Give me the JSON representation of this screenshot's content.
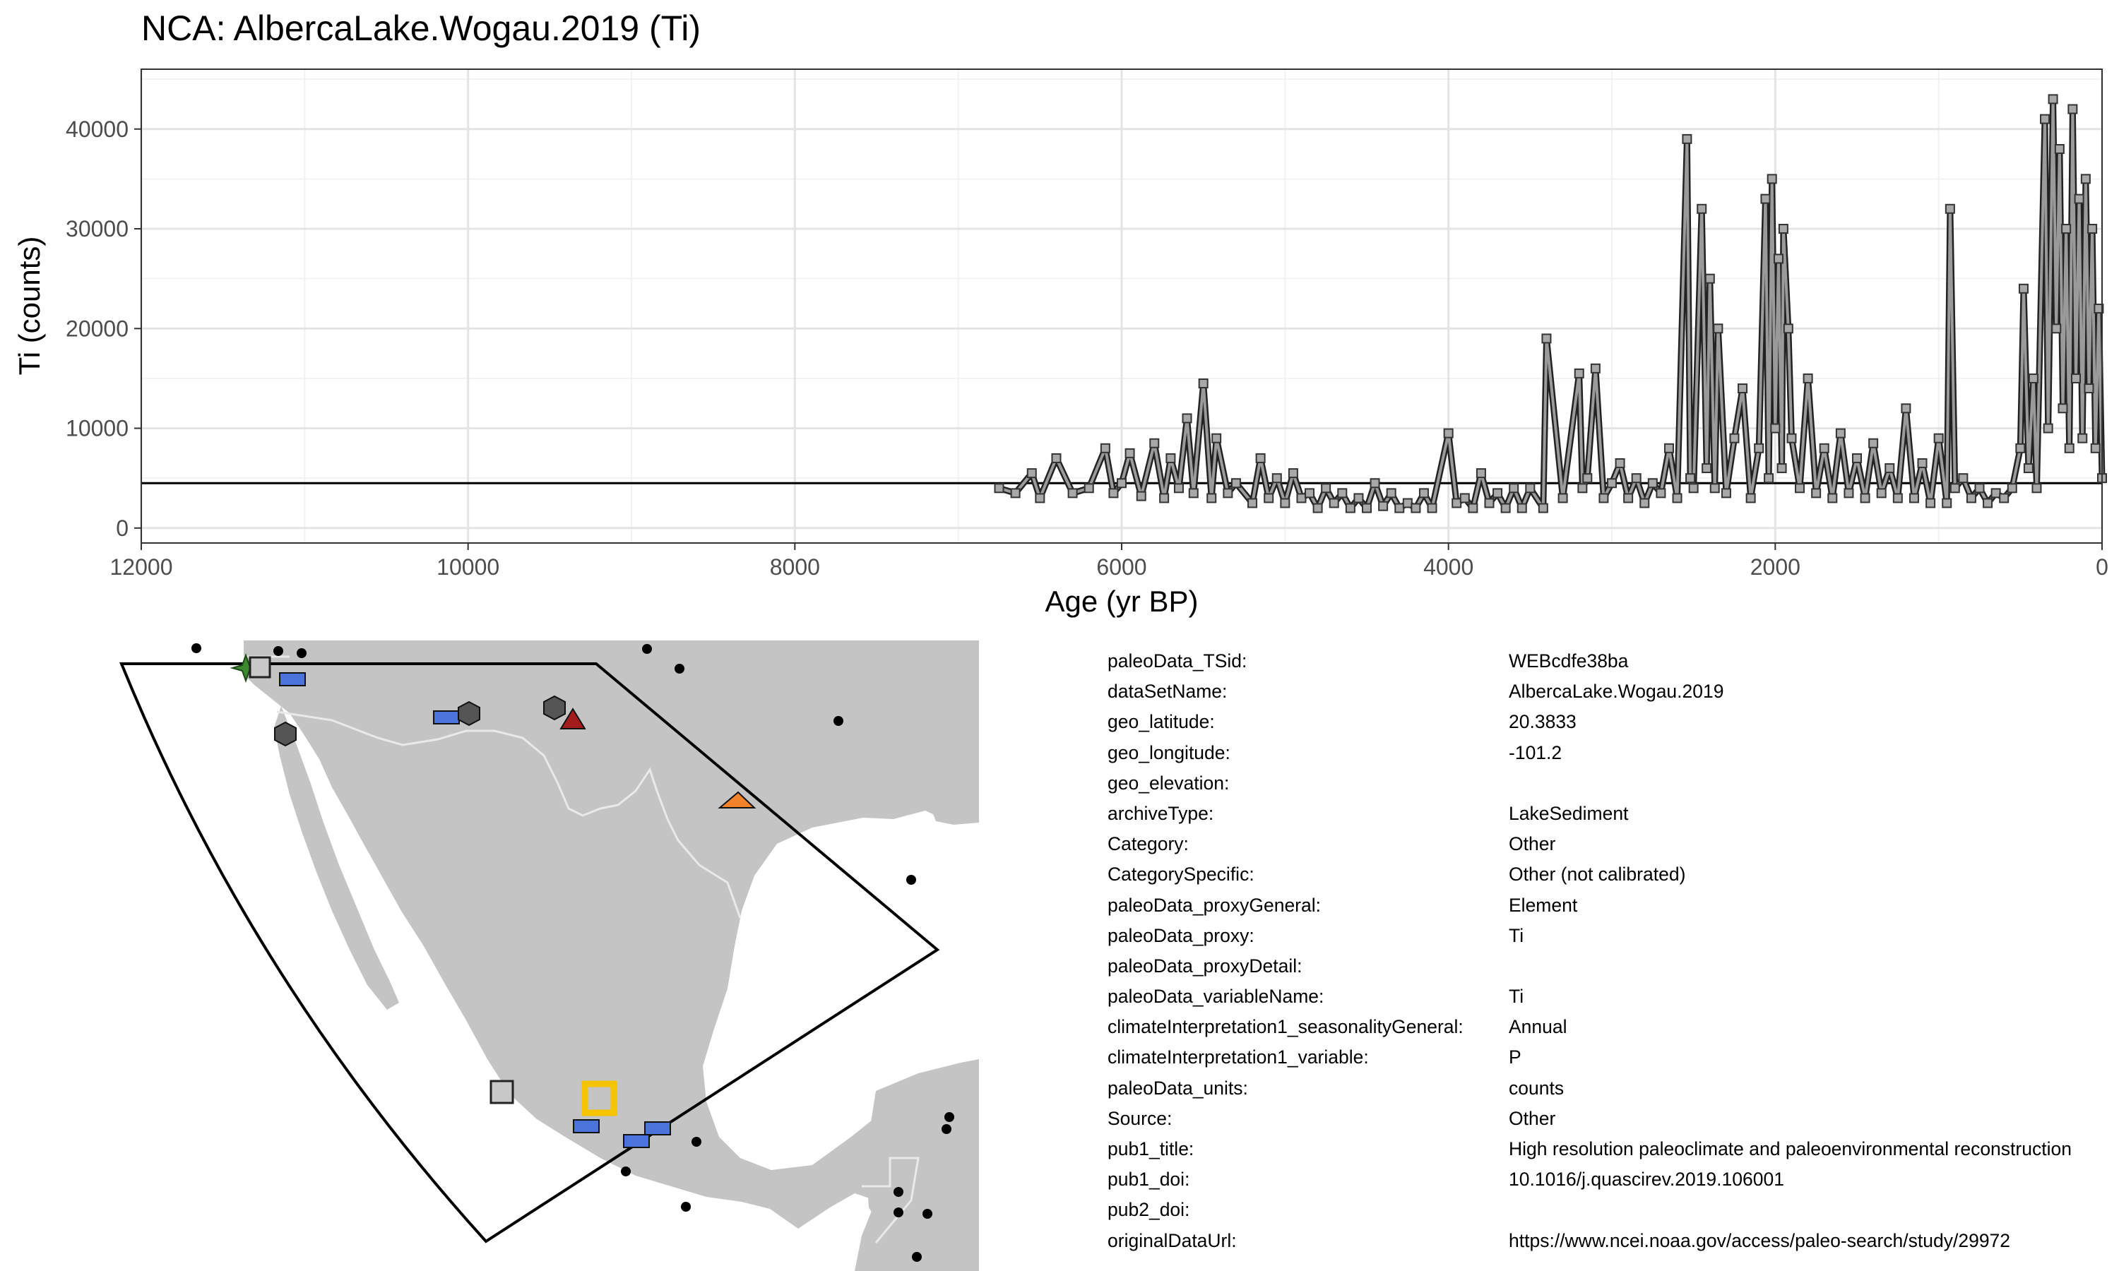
{
  "chart_data": {
    "type": "line",
    "title": "NCA: AlbercaLake.Wogau.2019 (Ti)",
    "xlabel": "Age (yr BP)",
    "ylabel": "Ti (counts)",
    "xlim": [
      12000,
      0
    ],
    "ylim": [
      -1500,
      46000
    ],
    "x_reversed": true,
    "grid": true,
    "x_ticks": [
      12000,
      10000,
      8000,
      6000,
      4000,
      2000,
      0
    ],
    "y_ticks": [
      0,
      10000,
      20000,
      30000,
      40000
    ],
    "mean_line": 4500,
    "series": [
      {
        "x": [
          6750,
          6650,
          6550,
          6500,
          6400,
          6300,
          6200,
          6100,
          6050,
          6000,
          5950,
          5880,
          5800,
          5740,
          5700,
          5650,
          5600,
          5560,
          5500,
          5450,
          5420,
          5350,
          5300,
          5200,
          5150,
          5100,
          5050,
          5000,
          4950,
          4900,
          4850,
          4800,
          4750,
          4700,
          4650,
          4600,
          4550,
          4500,
          4450,
          4400,
          4350,
          4300,
          4250,
          4200,
          4150,
          4100,
          4000,
          3950,
          3900,
          3850,
          3800,
          3750,
          3700,
          3650,
          3600,
          3550,
          3500,
          3420,
          3400,
          3300,
          3200,
          3180,
          3150,
          3100,
          3050,
          3000,
          2950,
          2900,
          2850,
          2800,
          2750,
          2700,
          2650,
          2600,
          2540,
          2520,
          2500,
          2450,
          2420,
          2400,
          2370,
          2350,
          2300,
          2250,
          2200,
          2150,
          2100,
          2060,
          2040,
          2020,
          2000,
          1980,
          1960,
          1950,
          1920,
          1900,
          1850,
          1800,
          1750,
          1700,
          1650,
          1600,
          1550,
          1500,
          1450,
          1400,
          1350,
          1300,
          1250,
          1200,
          1150,
          1100,
          1050,
          1000,
          950,
          930,
          900,
          850,
          800,
          750,
          700,
          650,
          600,
          550,
          500,
          480,
          450,
          420,
          400,
          350,
          330,
          300,
          280,
          260,
          240,
          220,
          200,
          180,
          160,
          140,
          120,
          100,
          80,
          60,
          40,
          20,
          0
        ],
        "y": [
          4000,
          3500,
          5500,
          3000,
          7000,
          3500,
          4000,
          8000,
          3500,
          4500,
          7500,
          3200,
          8500,
          3000,
          7000,
          4000,
          11000,
          3500,
          14500,
          3000,
          9000,
          3500,
          4500,
          2500,
          7000,
          3000,
          5000,
          2500,
          5500,
          3000,
          3500,
          2000,
          4000,
          2500,
          3500,
          2000,
          3000,
          2000,
          4500,
          2200,
          3500,
          2000,
          2500,
          2000,
          3500,
          2000,
          9500,
          2500,
          3000,
          2000,
          5500,
          2500,
          3500,
          2000,
          4000,
          2000,
          4000,
          2000,
          19000,
          3000,
          15500,
          4000,
          5000,
          16000,
          3000,
          4500,
          6500,
          3000,
          5000,
          2500,
          4500,
          3500,
          8000,
          3000,
          39000,
          5000,
          4000,
          32000,
          6000,
          25000,
          4000,
          20000,
          3500,
          9000,
          14000,
          3000,
          8000,
          33000,
          5000,
          35000,
          10000,
          27000,
          6000,
          30000,
          20000,
          9000,
          4000,
          15000,
          3500,
          8000,
          3000,
          9500,
          3500,
          7000,
          3000,
          8500,
          3500,
          6000,
          3000,
          12000,
          3000,
          6500,
          2500,
          9000,
          2500,
          32000,
          4000,
          5000,
          3000,
          4000,
          2500,
          3500,
          3000,
          4000,
          8000,
          24000,
          6000,
          15000,
          4000,
          41000,
          10000,
          43000,
          20000,
          38000,
          12000,
          30000,
          8000,
          42000,
          15000,
          33000,
          9000,
          35000,
          14000,
          30000,
          8000,
          22000,
          5000
        ]
      }
    ]
  },
  "map": {
    "colors": {
      "land": "#c4c4c4",
      "border": "#e8e8e8",
      "marker_blue": "#4a74d9",
      "marker_dark": "#555555",
      "marker_red": "#a31c1c",
      "marker_orange": "#f2832a",
      "marker_green": "#3d8a2e",
      "selected": "#f5c400"
    }
  },
  "metadata": [
    {
      "key": "paleoData_TSid:",
      "value": "WEBcdfe38ba"
    },
    {
      "key": "dataSetName:",
      "value": "AlbercaLake.Wogau.2019"
    },
    {
      "key": "geo_latitude:",
      "value": "20.3833"
    },
    {
      "key": "geo_longitude:",
      "value": "-101.2"
    },
    {
      "key": "geo_elevation:",
      "value": ""
    },
    {
      "key": "archiveType:",
      "value": "LakeSediment"
    },
    {
      "key": "Category:",
      "value": "Other"
    },
    {
      "key": "CategorySpecific:",
      "value": "Other (not calibrated)"
    },
    {
      "key": "paleoData_proxyGeneral:",
      "value": "Element"
    },
    {
      "key": "paleoData_proxy:",
      "value": "Ti"
    },
    {
      "key": "paleoData_proxyDetail:",
      "value": ""
    },
    {
      "key": "paleoData_variableName:",
      "value": "Ti"
    },
    {
      "key": "climateInterpretation1_seasonalityGeneral:",
      "value": "Annual"
    },
    {
      "key": "climateInterpretation1_variable:",
      "value": "P"
    },
    {
      "key": "paleoData_units:",
      "value": "counts"
    },
    {
      "key": "Source:",
      "value": "Other"
    },
    {
      "key": "pub1_title:",
      "value": "High resolution paleoclimate and paleoenvironmental reconstruction"
    },
    {
      "key": "pub1_doi:",
      "value": "10.1016/j.quascirev.2019.106001"
    },
    {
      "key": "pub2_doi:",
      "value": ""
    },
    {
      "key": "originalDataUrl:",
      "value": "https://www.ncei.noaa.gov/access/paleo-search/study/29972"
    }
  ]
}
